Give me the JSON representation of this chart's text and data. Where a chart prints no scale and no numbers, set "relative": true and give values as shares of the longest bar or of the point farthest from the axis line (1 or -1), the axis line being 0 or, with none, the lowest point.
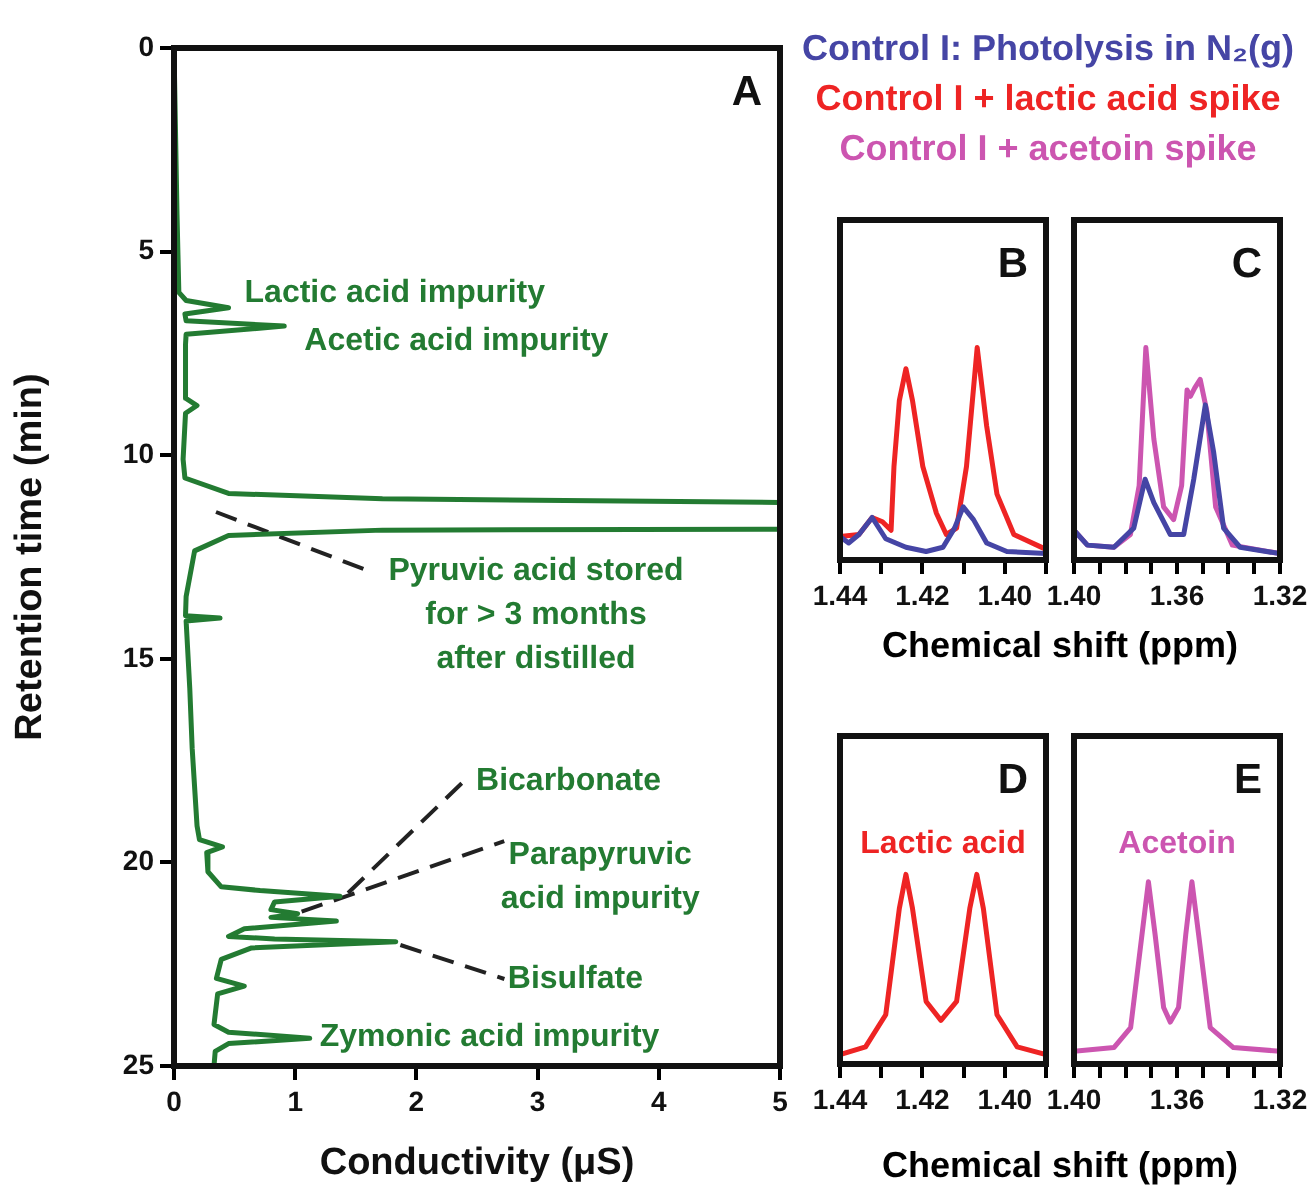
{
  "chart_data": [
    {
      "type": "line",
      "xlabel": "Conductivity (μS)",
      "ylabel": "Retention time (min)",
      "xlim": [
        0,
        5
      ],
      "ylim": [
        25,
        0
      ],
      "xticks": [
        0,
        1,
        2,
        3,
        4,
        5
      ],
      "yticks": [
        0,
        5,
        10,
        15,
        20,
        25
      ],
      "annotations": [
        "A",
        {
          "text": "Lactic acid impurity",
          "x": 0.45,
          "y": 6.38
        },
        {
          "text": "Acetic acid impurity",
          "x": 0.91,
          "y": 6.83
        },
        "Pyruvic acid stored\nfor > 3 months\nafter distilled",
        {
          "text": "Bicarbonate",
          "x": 1.37,
          "y": 20.83
        },
        {
          "text": "Parapyruvic\nacid impurity",
          "x": 1.02,
          "y": 21.26
        },
        {
          "text": "Bisulfate",
          "x": 1.83,
          "y": 21.95
        },
        {
          "text": "Zymonic acid impurity",
          "x": 1.12,
          "y": 24.32
        }
      ],
      "series": [
        {
          "color": "#237b32",
          "x": [
            0,
            0.025,
            0.04,
            0.1,
            0.45,
            0.09,
            0.1,
            0.91,
            0.1,
            0.095,
            0.095,
            0.19,
            0.095,
            0.075,
            0.09,
            0.45,
            1.72,
            5,
            5,
            1.72,
            0.45,
            0.17,
            0.1,
            0.095,
            0.38,
            0.1,
            0.13,
            0.15,
            0.19,
            0.21,
            0.4,
            0.27,
            0.28,
            0.39,
            0.71,
            1.37,
            0.83,
            0.8,
            1.02,
            0.8,
            1.34,
            0.58,
            0.45,
            0.83,
            1.83,
            0.64,
            0.39,
            0.35,
            0.58,
            0.36,
            0.33,
            0.45,
            1.12,
            0.45,
            0.34,
            0.33
          ],
          "values": [
            0,
            4.1,
            6.0,
            6.2,
            6.38,
            6.53,
            6.7,
            6.83,
            7.03,
            7.28,
            8.6,
            8.78,
            8.97,
            10.1,
            10.56,
            10.94,
            11.07,
            11.16,
            11.82,
            11.84,
            11.97,
            12.35,
            13.47,
            13.94,
            14.0,
            14.07,
            15.72,
            17.2,
            19.1,
            19.44,
            19.62,
            19.76,
            20.23,
            20.6,
            20.69,
            20.83,
            20.97,
            21.16,
            21.26,
            21.35,
            21.44,
            21.63,
            21.82,
            21.88,
            21.95,
            22.1,
            22.38,
            22.85,
            23.04,
            23.23,
            23.98,
            24.17,
            24.32,
            24.45,
            24.64,
            25
          ]
        }
      ]
    },
    {
      "type": "line",
      "relative": true,
      "xlabel": "Chemical shift (ppm)",
      "xlim": [
        1.44,
        1.39
      ],
      "xticks": [
        1.44,
        {
          "value": 1.43,
          "label": null
        },
        1.42,
        {
          "value": 1.41,
          "label": null
        },
        {
          "value": 1.4,
          "label": "1.40"
        },
        {
          "value": 1.39,
          "label": null
        }
      ],
      "legend": "top",
      "annotations": [
        "B"
      ],
      "series": [
        {
          "name": "Control I: Photolysis in N₂(g)",
          "color": "#4545a5",
          "x": [
            1.44,
            1.4379,
            1.4354,
            1.4322,
            1.4289,
            1.424,
            1.4191,
            1.415,
            1.4122,
            1.4101,
            1.4076,
            1.4044,
            1.3995,
            1.39
          ],
          "values": [
            0.11,
            0.08,
            0.12,
            0.2,
            0.1,
            0.06,
            0.04,
            0.06,
            0.15,
            0.25,
            0.19,
            0.08,
            0.04,
            0.03
          ]
        },
        {
          "name": "Control I + lactic acid spike",
          "color": "#ee2424",
          "x": [
            1.44,
            1.4354,
            1.4322,
            1.4297,
            1.4276,
            1.4269,
            1.4256,
            1.424,
            1.4224,
            1.4199,
            1.4166,
            1.4142,
            1.4117,
            1.4093,
            1.4067,
            1.4044,
            1.4019,
            1.3978,
            1.39
          ],
          "values": [
            0.11,
            0.12,
            0.2,
            0.18,
            0.14,
            0.44,
            0.75,
            0.9,
            0.75,
            0.44,
            0.22,
            0.12,
            0.15,
            0.44,
            1.0,
            0.63,
            0.31,
            0.12,
            0.05
          ]
        }
      ]
    },
    {
      "type": "line",
      "relative": true,
      "xlim": [
        1.4,
        1.32
      ],
      "xticks": [
        {
          "value": 1.4,
          "label": "1.40"
        },
        {
          "value": 1.39,
          "label": null
        },
        {
          "value": 1.38,
          "label": null
        },
        {
          "value": 1.37,
          "label": null
        },
        1.36,
        {
          "value": 1.35,
          "label": null
        },
        {
          "value": 1.34,
          "label": null
        },
        {
          "value": 1.33,
          "label": null
        },
        1.32
      ],
      "legend": "top",
      "annotations": [
        "C"
      ],
      "series": [
        {
          "color": "#4545a5",
          "x": [
            1.4,
            1.3948,
            1.3845,
            1.3768,
            1.3724,
            1.369,
            1.3626,
            1.3574,
            1.3535,
            1.349,
            1.3458,
            1.3419,
            1.3355,
            1.32
          ],
          "values": [
            0.14,
            0.07,
            0.06,
            0.15,
            0.38,
            0.27,
            0.12,
            0.12,
            0.38,
            0.73,
            0.51,
            0.15,
            0.06,
            0.03
          ]
        },
        {
          "name": "Control I + acetoin spike",
          "color": "#cc55b0",
          "x": [
            1.4,
            1.3948,
            1.3845,
            1.3781,
            1.3747,
            1.3721,
            1.369,
            1.3652,
            1.3613,
            1.3582,
            1.3561,
            1.3548,
            1.3531,
            1.351,
            1.3484,
            1.345,
            1.3385,
            1.32
          ],
          "values": [
            0.14,
            0.07,
            0.06,
            0.12,
            0.35,
            1.0,
            0.57,
            0.25,
            0.19,
            0.35,
            0.8,
            0.77,
            0.81,
            0.85,
            0.7,
            0.25,
            0.07,
            0.03
          ]
        }
      ]
    },
    {
      "type": "line",
      "relative": true,
      "xlabel": "Chemical shift (ppm)",
      "xlim": [
        1.44,
        1.39
      ],
      "xticks": [
        1.44,
        {
          "value": 1.43,
          "label": null
        },
        1.42,
        {
          "value": 1.41,
          "label": null
        },
        {
          "value": 1.4,
          "label": "1.40"
        },
        {
          "value": 1.39,
          "label": null
        }
      ],
      "annotations": [
        "D"
      ],
      "series": [
        {
          "name": "Lactic acid",
          "color": "#ee2424",
          "x": [
            1.44,
            1.4338,
            1.4289,
            1.4256,
            1.424,
            1.4224,
            1.4191,
            1.4155,
            1.4117,
            1.4085,
            1.4068,
            1.4052,
            1.4019,
            1.397,
            1.39
          ],
          "values": [
            0.05,
            0.09,
            0.26,
            0.82,
            1.0,
            0.82,
            0.33,
            0.23,
            0.33,
            0.82,
            1.0,
            0.82,
            0.26,
            0.09,
            0.05
          ]
        }
      ]
    },
    {
      "type": "line",
      "relative": true,
      "xlim": [
        1.4,
        1.32
      ],
      "xticks": [
        {
          "value": 1.4,
          "label": "1.40"
        },
        {
          "value": 1.39,
          "label": null
        },
        {
          "value": 1.38,
          "label": null
        },
        {
          "value": 1.37,
          "label": null
        },
        1.36,
        {
          "value": 1.35,
          "label": null
        },
        {
          "value": 1.34,
          "label": null
        },
        {
          "value": 1.33,
          "label": null
        },
        1.32
      ],
      "annotations": [
        "E"
      ],
      "series": [
        {
          "name": "Acetoin",
          "color": "#cc55b0",
          "x": [
            1.4,
            1.3845,
            1.378,
            1.3736,
            1.3711,
            1.3685,
            1.3652,
            1.3626,
            1.3594,
            1.3566,
            1.3542,
            1.3516,
            1.3471,
            1.3381,
            1.32
          ],
          "values": [
            0.07,
            0.09,
            0.2,
            0.71,
            1.0,
            0.71,
            0.31,
            0.23,
            0.31,
            0.71,
            1.0,
            0.71,
            0.2,
            0.09,
            0.07
          ]
        }
      ]
    }
  ]
}
